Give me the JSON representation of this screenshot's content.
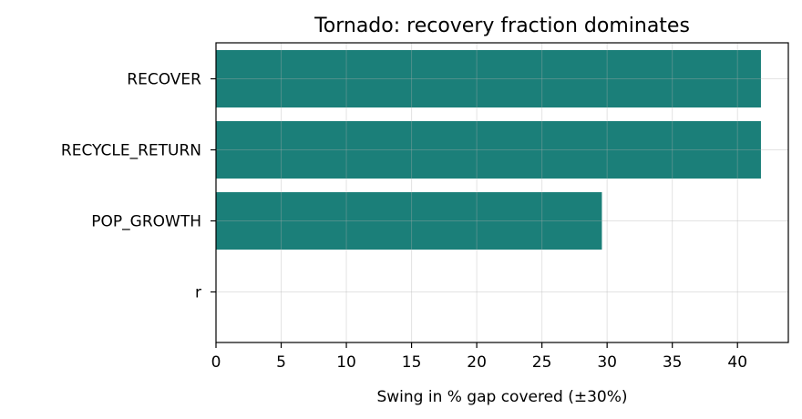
{
  "chart_data": {
    "type": "bar",
    "orientation": "horizontal",
    "title": "Tornado: recovery fraction dominates",
    "xlabel": "Swing in % gap covered (±30%)",
    "ylabel": "",
    "categories": [
      "RECOVER",
      "RECYCLE_RETURN",
      "POP_GROWTH",
      "r"
    ],
    "values": [
      41.8,
      41.8,
      29.6,
      0
    ],
    "xlim": [
      0,
      43.9
    ],
    "xticks": [
      0,
      5,
      10,
      15,
      20,
      25,
      30,
      35,
      40
    ],
    "grid": true,
    "bar_color": "#1b7f79"
  }
}
